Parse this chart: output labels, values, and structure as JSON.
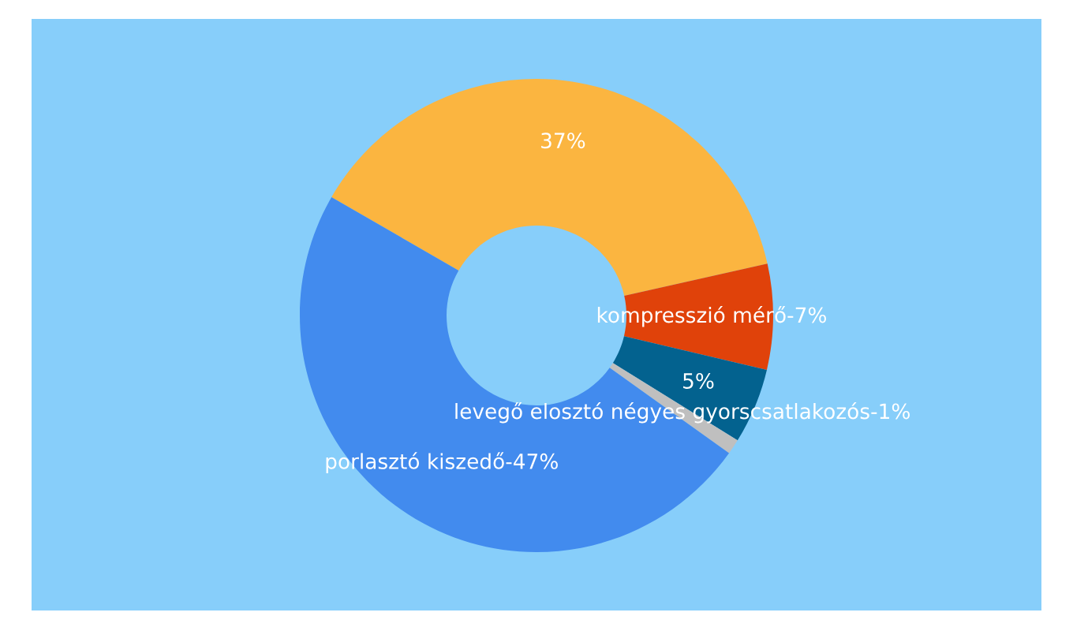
{
  "chart_data": {
    "type": "donut",
    "categories": [
      null,
      "kompresszió mérő-",
      null,
      "levegő elosztó négyes gyorscsatlakozós-",
      "porlasztó kiszedő-"
    ],
    "values": [
      37,
      7,
      5,
      1,
      47
    ],
    "value_labels": [
      "37%",
      "7%",
      "5%",
      "1%",
      "47%"
    ],
    "colors": [
      "#fbb540",
      "#e0420a",
      "#03628f",
      "#bfbfbf",
      "#428bee"
    ]
  }
}
